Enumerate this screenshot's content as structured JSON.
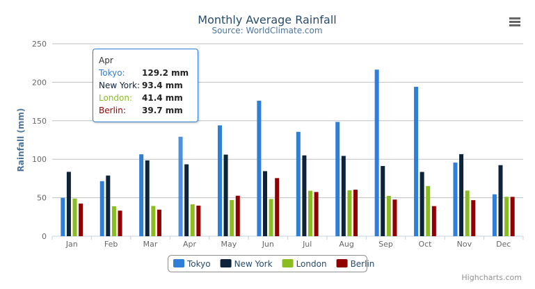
{
  "chart_data": {
    "type": "bar",
    "title": "Monthly Average Rainfall",
    "subtitle": "Source: WorldClimate.com",
    "ylabel": "Rainfall (mm)",
    "xlabel": "",
    "ylim": [
      0,
      250
    ],
    "yticks": [
      "0",
      "50",
      "100",
      "150",
      "200",
      "250"
    ],
    "grid": true,
    "legend_placement": "bottom",
    "categories": [
      "Jan",
      "Feb",
      "Mar",
      "Apr",
      "May",
      "Jun",
      "Jul",
      "Aug",
      "Sep",
      "Oct",
      "Nov",
      "Dec"
    ],
    "series": [
      {
        "name": "Tokyo",
        "color": "#2f7ed8",
        "values": [
          49.9,
          71.5,
          106.4,
          129.2,
          144.0,
          176.0,
          135.6,
          148.5,
          216.4,
          194.1,
          95.6,
          54.4
        ]
      },
      {
        "name": "New York",
        "color": "#0d233a",
        "values": [
          83.6,
          78.8,
          98.5,
          93.4,
          106.0,
          84.5,
          105.0,
          104.3,
          91.2,
          83.5,
          106.6,
          92.3
        ]
      },
      {
        "name": "London",
        "color": "#8bbc21",
        "values": [
          48.9,
          38.8,
          39.3,
          41.4,
          47.0,
          48.3,
          59.0,
          59.6,
          52.4,
          65.2,
          59.3,
          51.2
        ]
      },
      {
        "name": "Berlin",
        "color": "#910000",
        "values": [
          42.4,
          33.2,
          34.5,
          39.7,
          52.6,
          75.5,
          57.4,
          60.4,
          47.6,
          39.1,
          46.8,
          51.1
        ]
      }
    ]
  },
  "tooltip": {
    "header": "Apr",
    "rows": [
      {
        "name": "Tokyo:",
        "value": "129.2 mm",
        "color": "#2f7ed8"
      },
      {
        "name": "New York:",
        "value": "93.4 mm",
        "color": "#0d233a"
      },
      {
        "name": "London:",
        "value": "41.4 mm",
        "color": "#8bbc21"
      },
      {
        "name": "Berlin:",
        "value": "39.7 mm",
        "color": "#910000"
      }
    ]
  },
  "credits": "Highcharts.com",
  "menu_icon": "hamburger-menu-icon"
}
